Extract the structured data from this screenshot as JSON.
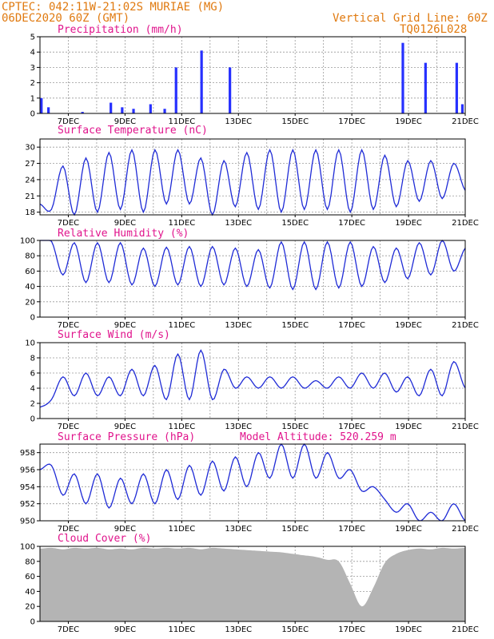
{
  "header": {
    "line1": "CPTEC:   042:11W-21:02S   MURIAE (MG)",
    "line2": "06DEC2020 60Z (GMT)",
    "grid_note": "Vertical Grid Line: 60Z",
    "code": "TQ0126L028"
  },
  "colors": {
    "line": "#1f2bd6",
    "bars": "#2630ff",
    "cloud": "#b4b4b4",
    "title": "#e0148c",
    "header": "#e07a10"
  },
  "x_labels": [
    "7DEC",
    "9DEC",
    "11DEC",
    "13DEC",
    "15DEC",
    "17DEC",
    "19DEC",
    "21DEC"
  ],
  "chart_data": [
    {
      "type": "bar",
      "title": "Precipitation (mm/h)",
      "ylim": [
        0,
        5
      ],
      "yticks": [
        0,
        1,
        2,
        3,
        4,
        5
      ],
      "x_range_days": [
        6,
        21
      ],
      "peaks": [
        {
          "day": 6.05,
          "value": 1.0
        },
        {
          "day": 6.3,
          "value": 0.4
        },
        {
          "day": 7.5,
          "value": 0.1
        },
        {
          "day": 8.5,
          "value": 0.7
        },
        {
          "day": 8.9,
          "value": 0.4
        },
        {
          "day": 9.3,
          "value": 0.3
        },
        {
          "day": 9.9,
          "value": 0.6
        },
        {
          "day": 10.4,
          "value": 0.3
        },
        {
          "day": 10.8,
          "value": 3.0
        },
        {
          "day": 11.7,
          "value": 4.1
        },
        {
          "day": 12.7,
          "value": 3.0
        },
        {
          "day": 18.8,
          "value": 4.6
        },
        {
          "day": 19.6,
          "value": 3.3
        },
        {
          "day": 20.7,
          "value": 3.3
        },
        {
          "day": 20.9,
          "value": 0.6
        }
      ]
    },
    {
      "type": "line",
      "title": "Surface Temperature (nC)",
      "ylim": [
        17.5,
        31.5
      ],
      "yticks": [
        18,
        21,
        24,
        27,
        30
      ],
      "x_range_days": [
        6,
        21
      ],
      "values": [
        19.5,
        18.5,
        26.5,
        17.5,
        28,
        18,
        29,
        18.5,
        29.5,
        18,
        29.5,
        19.5,
        29.5,
        19.5,
        28,
        17.5,
        27.5,
        19,
        29,
        18.5,
        29.5,
        18,
        29.5,
        18.5,
        29.5,
        18.5,
        29.5,
        18,
        29.5,
        18.5,
        28.5,
        19,
        27.5,
        20,
        27.5,
        20.5,
        27,
        22
      ]
    },
    {
      "type": "line",
      "title": "Relative Humidity (%)",
      "ylim": [
        0,
        100
      ],
      "yticks": [
        0,
        20,
        40,
        60,
        80,
        100
      ],
      "x_range_days": [
        6,
        21
      ],
      "values": [
        100,
        99,
        55,
        97,
        45,
        97,
        45,
        97,
        42,
        90,
        40,
        91,
        42,
        92,
        40,
        92,
        42,
        90,
        40,
        88,
        38,
        98,
        36,
        98,
        36,
        98,
        38,
        98,
        40,
        92,
        45,
        90,
        50,
        97,
        55,
        100,
        60,
        90
      ]
    },
    {
      "type": "line",
      "title": "Surface Wind (m/s)",
      "ylim": [
        0,
        10
      ],
      "yticks": [
        0,
        2,
        4,
        6,
        8,
        10
      ],
      "x_range_days": [
        6,
        21
      ],
      "values": [
        1.5,
        2.5,
        5.5,
        3,
        6,
        3,
        5.5,
        3,
        6.5,
        3,
        7,
        2.5,
        8.5,
        2.5,
        9,
        2.5,
        6.5,
        4,
        5.5,
        4,
        5.5,
        4,
        5.5,
        4,
        5,
        4,
        5.5,
        4,
        6,
        4,
        6,
        3.5,
        5.5,
        3,
        6.5,
        3,
        7.5,
        4
      ]
    },
    {
      "type": "line",
      "title": "Surface Pressure (hPa)",
      "annotation": "Model Altitude: 520.259  m",
      "ylim": [
        950,
        959
      ],
      "yticks": [
        950,
        952,
        954,
        956,
        958
      ],
      "x_range_days": [
        6,
        21
      ],
      "values": [
        956,
        956.5,
        953,
        955.5,
        952,
        955.5,
        951.5,
        955,
        952,
        955.5,
        952,
        956,
        952.5,
        956.5,
        953,
        957,
        953.5,
        957.5,
        954,
        958,
        955,
        959,
        955,
        959,
        955,
        958,
        955,
        956,
        953.5,
        954,
        952.5,
        951,
        952,
        950,
        951,
        950,
        952,
        950
      ]
    },
    {
      "type": "area",
      "title": "Cloud Cover (%)",
      "ylim": [
        0,
        100
      ],
      "yticks": [
        0,
        20,
        40,
        60,
        80,
        100
      ],
      "x_range_days": [
        6,
        21
      ],
      "values": [
        97,
        98,
        96,
        98,
        97,
        98,
        96,
        97,
        96,
        98,
        97,
        98,
        97,
        98,
        96,
        98,
        97,
        96,
        95,
        94,
        93,
        92,
        90,
        88,
        86,
        82,
        80,
        50,
        20,
        45,
        78,
        90,
        95,
        97,
        96,
        98,
        97,
        98
      ]
    }
  ]
}
